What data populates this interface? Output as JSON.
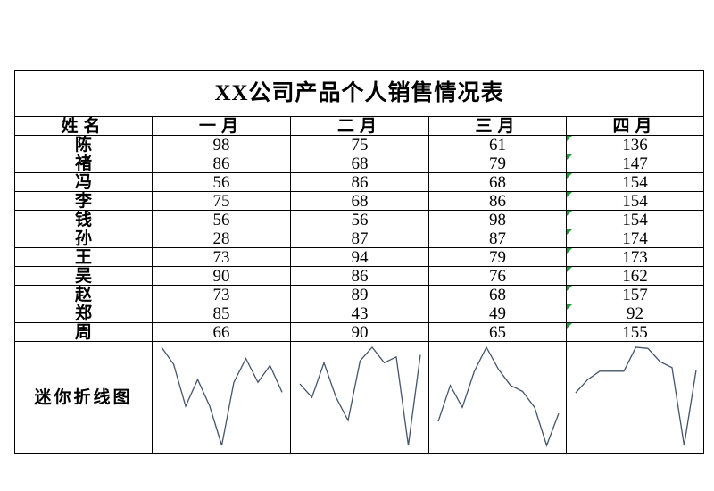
{
  "title": "XX公司产品个人销售情况表",
  "headers": [
    "姓名",
    "一月",
    "二月",
    "三月",
    "四月"
  ],
  "rows": [
    {
      "name": "陈",
      "values": [
        98,
        75,
        61,
        136
      ]
    },
    {
      "name": "褚",
      "values": [
        86,
        68,
        79,
        147
      ]
    },
    {
      "name": "冯",
      "values": [
        56,
        86,
        68,
        154
      ]
    },
    {
      "name": "李",
      "values": [
        75,
        68,
        86,
        154
      ]
    },
    {
      "name": "钱",
      "values": [
        56,
        56,
        98,
        154
      ]
    },
    {
      "name": "孙",
      "values": [
        28,
        87,
        87,
        174
      ]
    },
    {
      "name": "王",
      "values": [
        73,
        94,
        79,
        173
      ]
    },
    {
      "name": "吴",
      "values": [
        90,
        86,
        76,
        162
      ]
    },
    {
      "name": "赵",
      "values": [
        73,
        89,
        68,
        157
      ]
    },
    {
      "name": "郑",
      "values": [
        85,
        43,
        49,
        92
      ]
    },
    {
      "name": "周",
      "values": [
        66,
        90,
        65,
        155
      ]
    }
  ],
  "sparkline_label": "迷你折线图",
  "colors": {
    "sparkline": "#44546a",
    "error_flag": "#1f9b3a",
    "grid": "#000000"
  },
  "chart_data": {
    "type": "line",
    "x": [
      "陈",
      "褚",
      "冯",
      "李",
      "钱",
      "孙",
      "王",
      "吴",
      "赵",
      "郑",
      "周"
    ],
    "series": [
      {
        "name": "一月",
        "values": [
          98,
          86,
          56,
          75,
          56,
          28,
          73,
          90,
          73,
          85,
          66
        ]
      },
      {
        "name": "二月",
        "values": [
          75,
          68,
          86,
          68,
          56,
          87,
          94,
          86,
          89,
          43,
          90
        ]
      },
      {
        "name": "三月",
        "values": [
          61,
          79,
          68,
          86,
          98,
          87,
          79,
          76,
          68,
          49,
          65
        ]
      },
      {
        "name": "四月",
        "values": [
          136,
          147,
          154,
          154,
          154,
          174,
          173,
          162,
          157,
          92,
          155
        ]
      }
    ]
  }
}
